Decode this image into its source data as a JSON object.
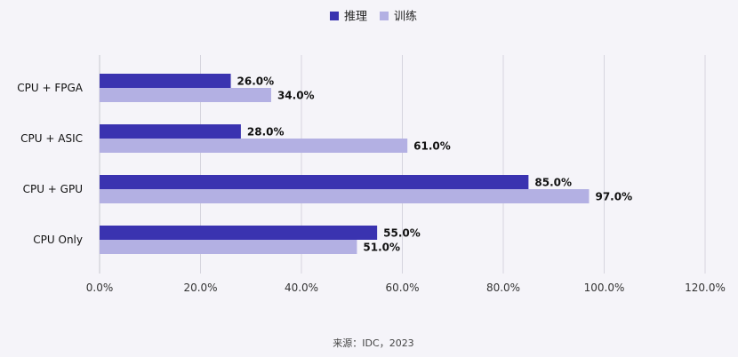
{
  "chart_data": {
    "type": "bar",
    "orientation": "horizontal",
    "categories": [
      "CPU + FPGA",
      "CPU + ASIC",
      "CPU + GPU",
      "CPU Only"
    ],
    "series": [
      {
        "name": "推理",
        "values": [
          26.0,
          28.0,
          85.0,
          55.0
        ],
        "labels": [
          "26.0%",
          "28.0%",
          "85.0%",
          "55.0%"
        ],
        "color": "#3a33b0"
      },
      {
        "name": "训练",
        "values": [
          34.0,
          61.0,
          97.0,
          51.0
        ],
        "labels": [
          "34.0%",
          "61.0%",
          "97.0%",
          "51.0%"
        ],
        "color": "#b3b0e3"
      }
    ],
    "x_ticks": [
      0,
      20,
      40,
      60,
      80,
      100,
      120
    ],
    "x_tick_labels": [
      "0.0%",
      "20.0%",
      "40.0%",
      "60.0%",
      "80.0%",
      "100.0%",
      "120.0%"
    ],
    "xlim": [
      0,
      120
    ],
    "grid": true,
    "legend_position": "top-center",
    "title": "",
    "xlabel": "",
    "ylabel": "",
    "source": "来源：IDC，2023"
  }
}
